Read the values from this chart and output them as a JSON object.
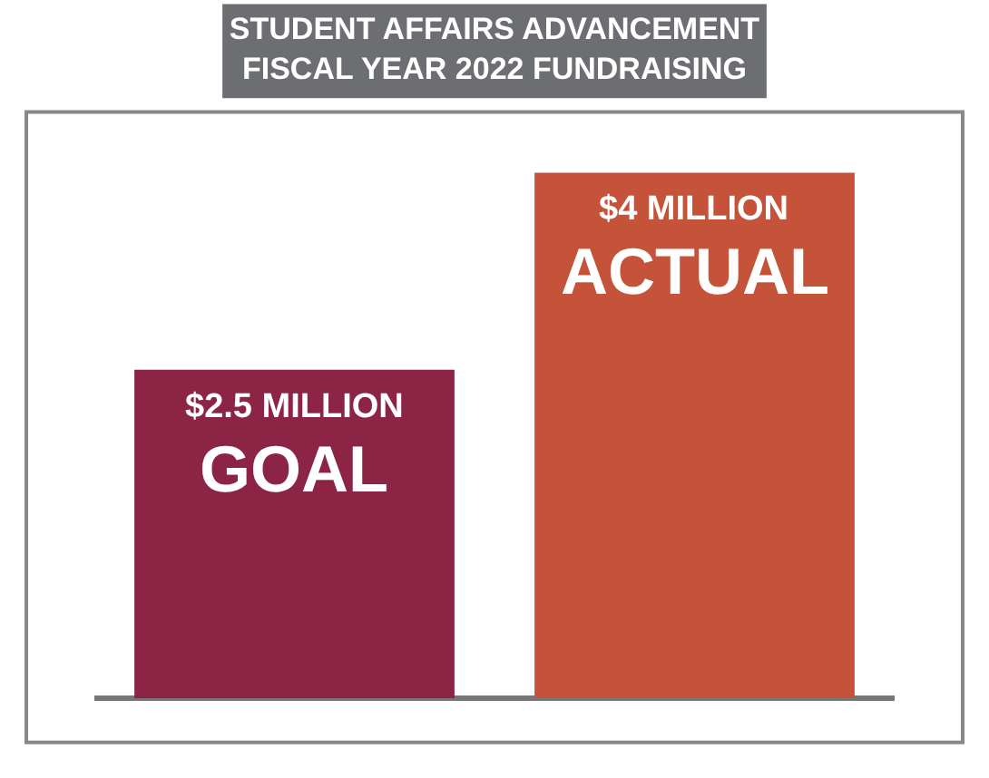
{
  "chart_data": {
    "type": "bar",
    "title": "STUDENT AFFAIRS ADVANCEMENT\nFISCAL YEAR 2022 FUNDRAISING",
    "categories": [
      "GOAL",
      "ACTUAL"
    ],
    "values": [
      2.5,
      4
    ],
    "value_labels": [
      "$2.5 MILLION",
      "$4 MILLION"
    ],
    "colors": [
      "#8c2446",
      "#c4533a"
    ],
    "legend": false,
    "grid": false
  }
}
